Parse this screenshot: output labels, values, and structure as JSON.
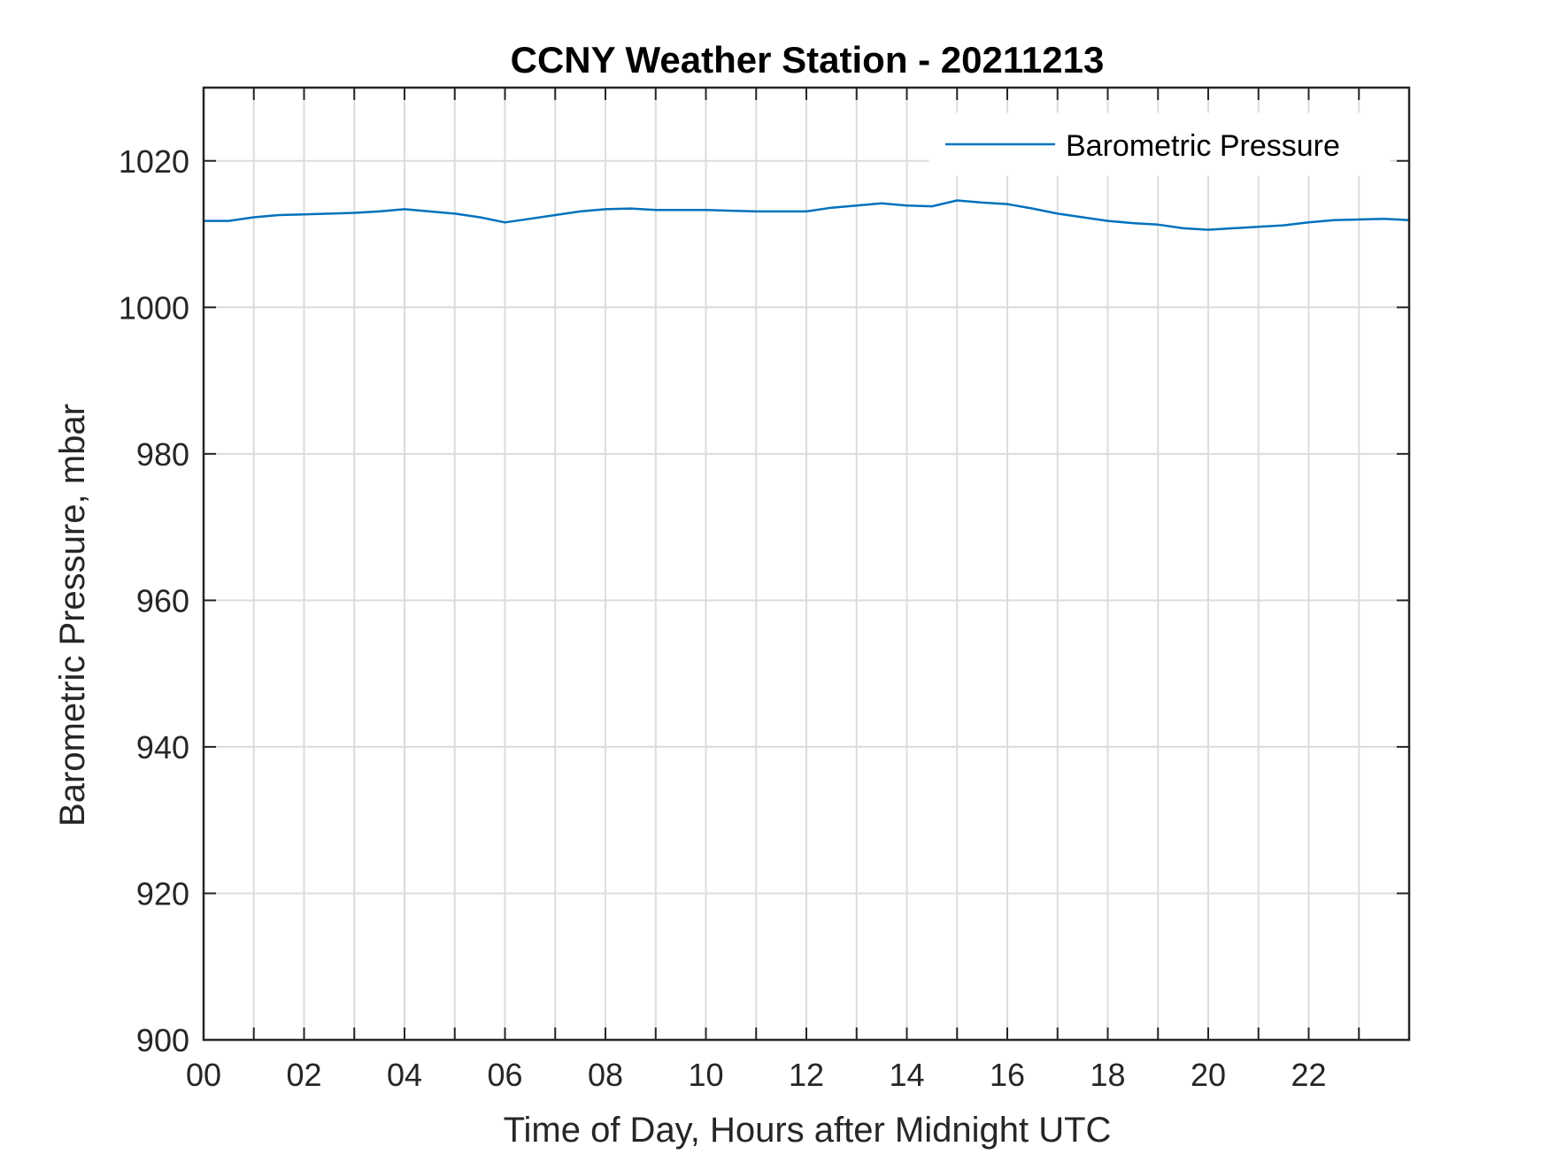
{
  "chart_data": {
    "type": "line",
    "title": "CCNY Weather Station - 20211213",
    "xlabel": "Time of Day, Hours after Midnight UTC",
    "ylabel": "Barometric Pressure, mbar",
    "xlim": [
      0,
      24
    ],
    "ylim": [
      900,
      1030
    ],
    "x_ticks": [
      0,
      2,
      4,
      6,
      8,
      10,
      12,
      14,
      16,
      18,
      20,
      22
    ],
    "x_tick_labels": [
      "00",
      "02",
      "04",
      "06",
      "08",
      "10",
      "12",
      "14",
      "16",
      "18",
      "20",
      "22"
    ],
    "x_minor_grid_every": 1,
    "y_ticks": [
      900,
      920,
      940,
      960,
      980,
      1000,
      1020
    ],
    "y_tick_labels": [
      "900",
      "920",
      "940",
      "960",
      "980",
      "1000",
      "1020"
    ],
    "grid": true,
    "legend_position": "top-right",
    "series": [
      {
        "name": "Barometric Pressure",
        "color": "#0072BD",
        "x": [
          0,
          0.5,
          1,
          1.5,
          2,
          2.5,
          3,
          3.5,
          4,
          4.5,
          5,
          5.5,
          6,
          6.5,
          7,
          7.5,
          8,
          8.5,
          9,
          9.5,
          10,
          10.5,
          11,
          11.5,
          12,
          12.5,
          13,
          13.5,
          14,
          14.5,
          15,
          15.5,
          16,
          16.5,
          17,
          17.5,
          18,
          18.5,
          19,
          19.5,
          20,
          20.5,
          21,
          21.5,
          22,
          22.5,
          23,
          23.5,
          24
        ],
        "values": [
          1011.8,
          1011.8,
          1012.3,
          1012.6,
          1012.7,
          1012.8,
          1012.9,
          1013.1,
          1013.4,
          1013.1,
          1012.8,
          1012.3,
          1011.6,
          1012.1,
          1012.6,
          1013.1,
          1013.4,
          1013.5,
          1013.3,
          1013.3,
          1013.3,
          1013.2,
          1013.1,
          1013.1,
          1013.1,
          1013.6,
          1013.9,
          1014.2,
          1013.9,
          1013.8,
          1014.6,
          1014.3,
          1014.1,
          1013.5,
          1012.8,
          1012.3,
          1011.8,
          1011.5,
          1011.3,
          1010.8,
          1010.6,
          1010.8,
          1011.0,
          1011.2,
          1011.6,
          1011.9,
          1012.0,
          1012.1,
          1011.9
        ]
      }
    ]
  }
}
